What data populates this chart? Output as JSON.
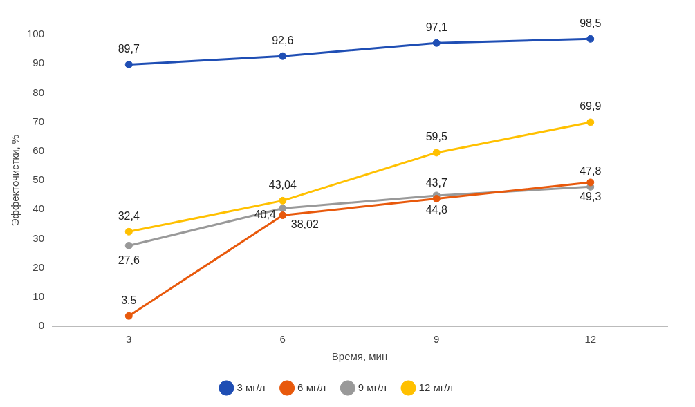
{
  "chart_data": {
    "type": "line",
    "xlabel": "Время, мин",
    "ylabel": "Эффекточистки, %",
    "categories": [
      "3",
      "6",
      "9",
      "12"
    ],
    "ylim": [
      0,
      100
    ],
    "yticks": [
      0,
      10,
      20,
      30,
      40,
      50,
      60,
      70,
      80,
      90,
      100
    ],
    "grid": false,
    "legend": "bottom",
    "marker": "circle",
    "line_style": "solid",
    "series": [
      {
        "name": "3 мг/л",
        "color": "#1f4eb4",
        "values": [
          89.7,
          92.6,
          97.1,
          98.5
        ],
        "value_labels": [
          "89,7",
          "92,6",
          "97,1",
          "98,5"
        ]
      },
      {
        "name": "6 мг/л",
        "color": "#e8590c",
        "values": [
          3.5,
          38.02,
          43.7,
          49.3
        ],
        "value_labels": [
          "3,5",
          "38,02",
          "43,7",
          "49,3"
        ]
      },
      {
        "name": "9 мг/л",
        "color": "#999999",
        "values": [
          27.6,
          40.4,
          44.8,
          47.8
        ],
        "value_labels": [
          "27,6",
          "40,4",
          "44,8",
          "47,8"
        ]
      },
      {
        "name": "12 мг/л",
        "color": "#ffc000",
        "values": [
          32.4,
          43.04,
          59.5,
          69.9
        ],
        "value_labels": [
          "32,4",
          "43,04",
          "59,5",
          "69,9"
        ]
      }
    ]
  }
}
